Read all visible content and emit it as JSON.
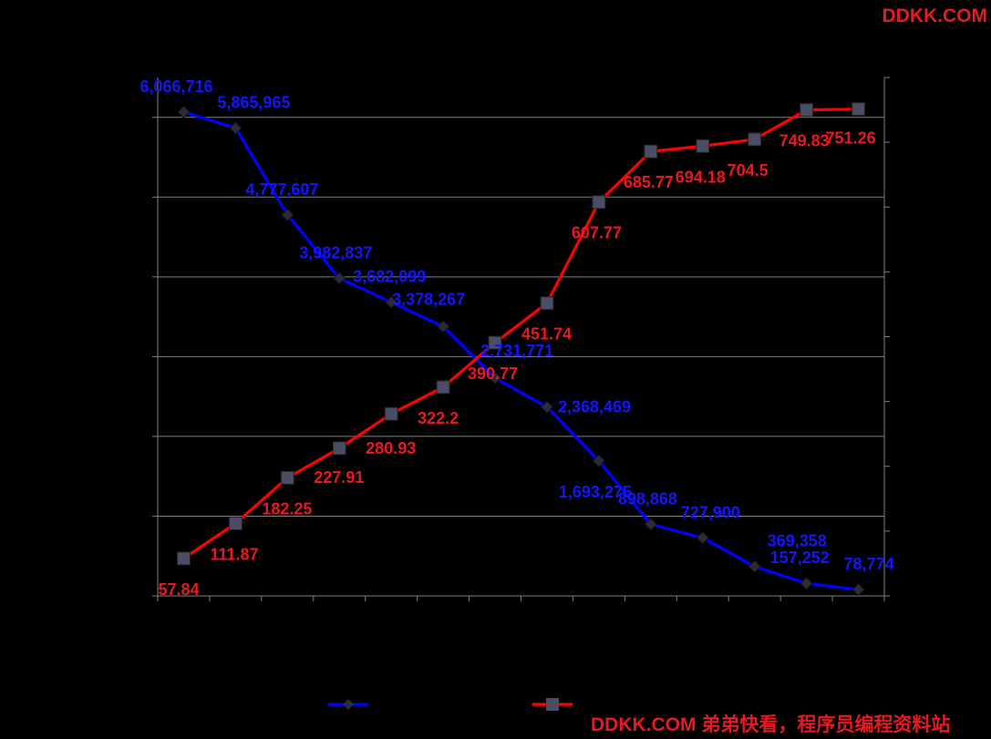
{
  "watermark": {
    "top": "DDKK.COM",
    "bottom": "DDKK.COM 弟弟快看，程序员编程资料站"
  },
  "colors": {
    "background": "#000000",
    "gridline": "#7f7f7f",
    "series_blue": "#0000ff",
    "series_red": "#ff0000",
    "blue_label": "#1414ff",
    "red_label": "#e8191f",
    "square_marker": "#4a4d63"
  },
  "chart_data": {
    "type": "line",
    "title": "",
    "xlabel": "",
    "categories": [
      "",
      "",
      "",
      "",
      "",
      "",
      "",
      "",
      "",
      "",
      "",
      "",
      "",
      ""
    ],
    "grid": true,
    "legend_placement": "bottom",
    "series": [
      {
        "axis": "left",
        "marker": "diamond",
        "color": "#0000ff",
        "ylim": [
          0,
          6500000
        ],
        "values": [
          6066716,
          5865965,
          4777607,
          3982837,
          3682099,
          3378267,
          2731771,
          2368469,
          1693275,
          898868,
          727900,
          369358,
          157252,
          78774
        ],
        "labels": [
          "6,066,716",
          "5,865,965",
          "4,777,607",
          "3,982,837",
          "3,682,099",
          "3,378,267",
          "2,731,771",
          "2,368,469",
          "1,693,275",
          "898,868",
          "727,900",
          "369,358",
          "157,252",
          "78,774"
        ]
      },
      {
        "axis": "right",
        "marker": "square",
        "color": "#ff0000",
        "ylim": [
          0,
          800
        ],
        "values": [
          57.84,
          111.87,
          182.25,
          227.91,
          280.93,
          322.2,
          390.77,
          451.74,
          607.77,
          685.77,
          694.18,
          704.5,
          749.83,
          751.26
        ],
        "labels": [
          "57.84",
          "111.87",
          "182.25",
          "227.91",
          "280.93",
          "322.2",
          "390.77",
          "451.74",
          "607.77",
          "685.77",
          "694.18",
          "704.5",
          "749.83",
          "751.26"
        ]
      }
    ]
  }
}
